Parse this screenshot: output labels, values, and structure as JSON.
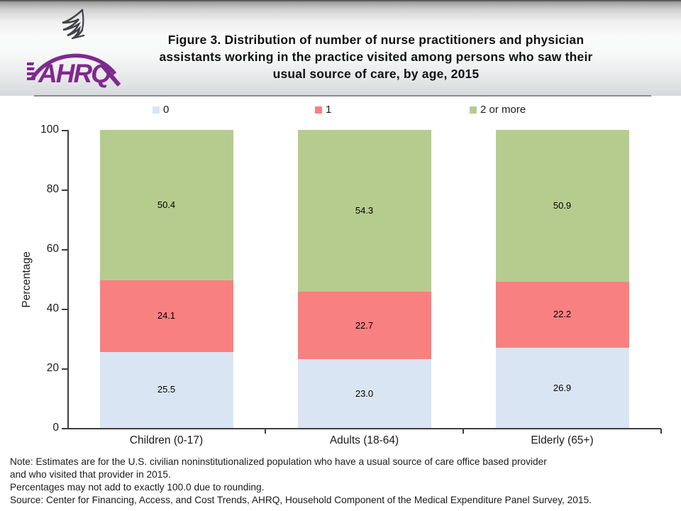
{
  "header": {
    "title_lines": [
      "Figure 3. Distribution of number of nurse practitioners and physician",
      "assistants working in the practice visited among persons who saw their",
      "usual source of care, by age, 2015"
    ],
    "logo_text": "AHRQ"
  },
  "chart_data": {
    "type": "bar",
    "stacked": true,
    "title": "Figure 3. Distribution of number of nurse practitioners and physician assistants working in the practice visited among persons who saw their usual source of care, by age, 2015",
    "categories": [
      "Children (0-17)",
      "Adults (18-64)",
      "Elderly (65+)"
    ],
    "series": [
      {
        "name": "0",
        "color": "#d9e5f3",
        "values": [
          25.5,
          23.0,
          26.9
        ],
        "labels": [
          "25.5",
          "23.0",
          "26.9"
        ]
      },
      {
        "name": "1",
        "color": "#f98080",
        "values": [
          24.1,
          22.7,
          22.2
        ],
        "labels": [
          "24.1",
          "22.7",
          "22.2"
        ]
      },
      {
        "name": "2 or more",
        "color": "#b6cc8e",
        "values": [
          50.4,
          54.3,
          50.9
        ],
        "labels": [
          "50.4",
          "54.3",
          "50.9"
        ]
      }
    ],
    "xlabel": "",
    "ylabel": "Percentage",
    "ylim": [
      0,
      100
    ],
    "yticks": [
      0,
      20,
      40,
      60,
      80,
      100
    ],
    "legend_position": "top",
    "grid": false
  },
  "footer": {
    "lines": [
      "Note: Estimates are for the U.S. civilian noninstitutionalized population who have a usual source of care office based provider",
      "and who visited that provider in 2015.",
      "Percentages may not add to exactly 100.0 due to rounding.",
      "Source: Center for Financing, Access, and Cost Trends, AHRQ, Household Component of the Medical Expenditure Panel Survey, 2015."
    ]
  },
  "colors": {
    "logo_purple": "#7e2a8d",
    "eagle_gray": "#41434b",
    "axis": "#3f3f3f"
  }
}
